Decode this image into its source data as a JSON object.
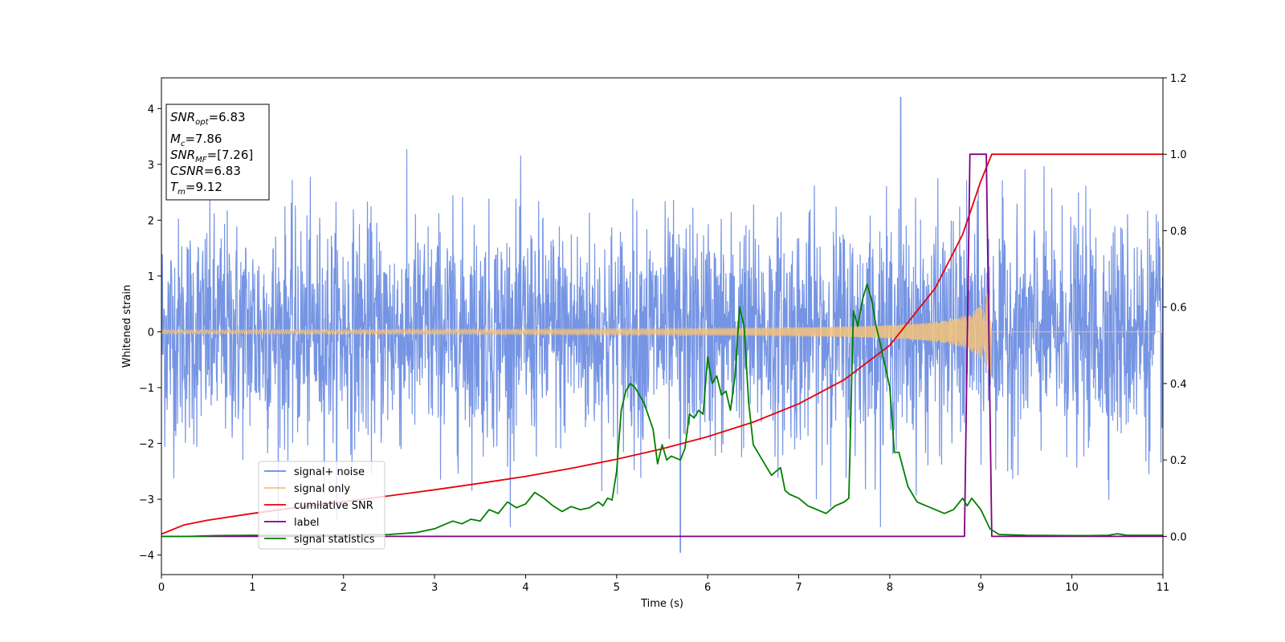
{
  "chart_data": {
    "type": "line",
    "xlabel": "Time (s)",
    "ylabel": "Whitened strain",
    "xlim": [
      0,
      11
    ],
    "ylim_left": [
      -4.35,
      4.55
    ],
    "ylim_right": [
      -0.1,
      1.2
    ],
    "x_ticks": [
      0,
      1,
      2,
      3,
      4,
      5,
      6,
      7,
      8,
      9,
      10,
      11
    ],
    "y_ticks_left": [
      -4,
      -3,
      -2,
      -1,
      0,
      1,
      2,
      3,
      4
    ],
    "y_ticks_right": [
      0.0,
      0.2,
      0.4,
      0.6,
      0.8,
      1.0,
      1.2
    ],
    "grid": false,
    "legend_position": "lower-left",
    "info_box": [
      {
        "var": "SNR",
        "sub": "opt",
        "value": "=6.83"
      },
      {
        "var": "M",
        "sub": "c",
        "value": "=7.86"
      },
      {
        "var": "SNR",
        "sub": "MF",
        "value": "=[7.26]"
      },
      {
        "var": "CSNR",
        "sub": "",
        "value": "=6.83"
      },
      {
        "var": "T",
        "sub": "m",
        "value": "=9.12"
      }
    ],
    "series": [
      {
        "name": "signal+ noise",
        "color": "#6688e0",
        "axis": "left",
        "kind": "noise",
        "std": 1.0,
        "peak_max": 4.2,
        "peak_min": -3.95
      },
      {
        "name": "signal only",
        "color": "#f4c27a",
        "axis": "left",
        "kind": "chirp",
        "start": 0,
        "end": 9.12,
        "amp_start": 0.02,
        "amp_end": 0.85
      },
      {
        "name": "cumilative SNR",
        "color": "#e8000b",
        "axis": "right",
        "x": [
          0,
          0.25,
          0.5,
          1,
          1.5,
          2,
          2.5,
          3,
          3.5,
          4,
          4.5,
          5,
          5.5,
          6,
          6.5,
          7,
          7.5,
          8,
          8.5,
          8.8,
          9.0,
          9.12,
          11
        ],
        "y": [
          0.006,
          0.03,
          0.042,
          0.06,
          0.076,
          0.091,
          0.106,
          0.122,
          0.139,
          0.157,
          0.178,
          0.202,
          0.229,
          0.261,
          0.299,
          0.347,
          0.41,
          0.5,
          0.65,
          0.79,
          0.93,
          1.0,
          1.0
        ]
      },
      {
        "name": "label",
        "color": "#800080",
        "axis": "right",
        "x": [
          0,
          8.82,
          8.88,
          9.06,
          9.12,
          11
        ],
        "y": [
          0,
          0,
          1,
          1,
          0,
          0
        ]
      },
      {
        "name": "signal statistics",
        "color": "#008000",
        "axis": "right",
        "x": [
          0,
          0.3,
          0.6,
          1,
          1.5,
          2,
          2.5,
          2.8,
          3.0,
          3.1,
          3.2,
          3.3,
          3.4,
          3.5,
          3.6,
          3.7,
          3.8,
          3.9,
          4.0,
          4.1,
          4.2,
          4.3,
          4.4,
          4.5,
          4.6,
          4.7,
          4.8,
          4.85,
          4.9,
          4.95,
          5.0,
          5.05,
          5.1,
          5.15,
          5.2,
          5.3,
          5.4,
          5.45,
          5.5,
          5.55,
          5.6,
          5.7,
          5.75,
          5.8,
          5.85,
          5.9,
          5.95,
          6.0,
          6.05,
          6.1,
          6.15,
          6.2,
          6.25,
          6.3,
          6.35,
          6.4,
          6.45,
          6.5,
          6.6,
          6.7,
          6.8,
          6.85,
          6.9,
          7.0,
          7.1,
          7.2,
          7.3,
          7.4,
          7.5,
          7.55,
          7.6,
          7.65,
          7.7,
          7.75,
          7.8,
          7.85,
          7.9,
          8.0,
          8.05,
          8.1,
          8.2,
          8.3,
          8.4,
          8.5,
          8.6,
          8.7,
          8.8,
          8.85,
          8.9,
          9.0,
          9.1,
          9.2,
          9.5,
          10,
          10.2,
          10.4,
          10.5,
          10.6,
          11
        ],
        "y": [
          0.0,
          0.0,
          0.002,
          0.003,
          0.003,
          0.004,
          0.005,
          0.01,
          0.02,
          0.03,
          0.04,
          0.033,
          0.045,
          0.04,
          0.07,
          0.06,
          0.09,
          0.075,
          0.085,
          0.115,
          0.1,
          0.08,
          0.065,
          0.078,
          0.07,
          0.075,
          0.09,
          0.08,
          0.1,
          0.095,
          0.17,
          0.33,
          0.38,
          0.4,
          0.39,
          0.35,
          0.28,
          0.19,
          0.24,
          0.2,
          0.21,
          0.2,
          0.23,
          0.32,
          0.31,
          0.33,
          0.32,
          0.47,
          0.4,
          0.42,
          0.37,
          0.38,
          0.33,
          0.42,
          0.6,
          0.55,
          0.35,
          0.24,
          0.2,
          0.16,
          0.18,
          0.12,
          0.11,
          0.1,
          0.08,
          0.07,
          0.06,
          0.08,
          0.09,
          0.1,
          0.59,
          0.55,
          0.62,
          0.66,
          0.62,
          0.55,
          0.5,
          0.39,
          0.22,
          0.22,
          0.13,
          0.09,
          0.08,
          0.07,
          0.06,
          0.07,
          0.1,
          0.08,
          0.1,
          0.07,
          0.02,
          0.005,
          0.003,
          0.002,
          0.002,
          0.003,
          0.007,
          0.003,
          0.003
        ]
      }
    ]
  }
}
